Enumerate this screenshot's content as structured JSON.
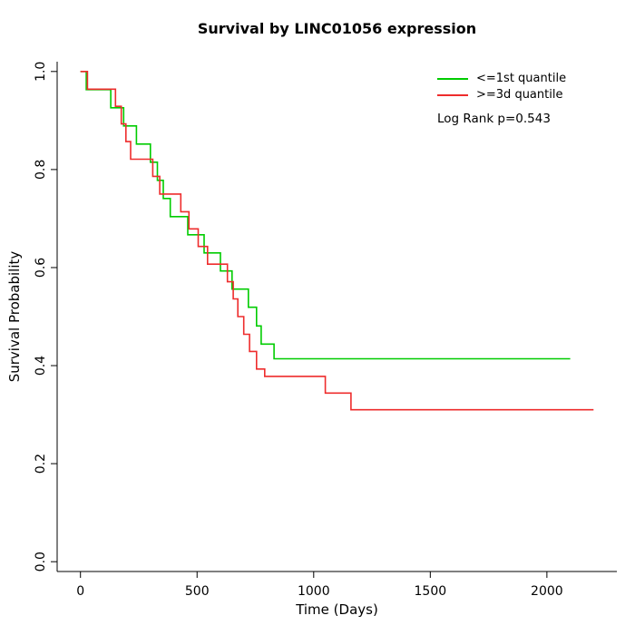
{
  "title": "Survival by LINC01056 expression",
  "x_axis": {
    "label": "Time (Days)",
    "ticks": [
      0,
      500,
      1000,
      1500,
      2000
    ],
    "min": -100,
    "max": 2300
  },
  "y_axis": {
    "label": "Survival Probability",
    "ticks": [
      0.0,
      0.2,
      0.4,
      0.6,
      0.8,
      1.0
    ],
    "min": -0.02,
    "max": 1.02
  },
  "legend": {
    "items": [
      {
        "label": "<=1st quantile",
        "color": "#00CC00"
      },
      {
        "label": ">=3d quantile",
        "color": "#EE2C2C"
      }
    ],
    "note": "Log Rank p=0.543"
  },
  "chart_data": {
    "type": "line",
    "subtype": "kaplan-meier-step",
    "title": "Survival by LINC01056 expression",
    "xlabel": "Time (Days)",
    "ylabel": "Survival Probability",
    "xlim": [
      0,
      2200
    ],
    "ylim": [
      0.0,
      1.0
    ],
    "x_ticks": [
      0,
      500,
      1000,
      1500,
      2000
    ],
    "y_ticks": [
      0.0,
      0.2,
      0.4,
      0.6,
      0.8,
      1.0
    ],
    "grid": false,
    "legend_position": "top-right",
    "annotations": [
      "Log Rank p=0.543"
    ],
    "series": [
      {
        "name": "<=1st quantile",
        "color": "#00CC00",
        "points": [
          [
            0,
            1.0
          ],
          [
            25,
            0.963
          ],
          [
            130,
            0.926
          ],
          [
            185,
            0.889
          ],
          [
            240,
            0.852
          ],
          [
            300,
            0.815
          ],
          [
            330,
            0.778
          ],
          [
            355,
            0.741
          ],
          [
            385,
            0.704
          ],
          [
            460,
            0.667
          ],
          [
            530,
            0.63
          ],
          [
            600,
            0.593
          ],
          [
            650,
            0.556
          ],
          [
            720,
            0.519
          ],
          [
            755,
            0.481
          ],
          [
            775,
            0.444
          ],
          [
            830,
            0.414
          ],
          [
            2100,
            0.414
          ]
        ]
      },
      {
        "name": ">=3d quantile",
        "color": "#EE2C2C",
        "points": [
          [
            0,
            1.0
          ],
          [
            30,
            0.964
          ],
          [
            150,
            0.929
          ],
          [
            175,
            0.893
          ],
          [
            195,
            0.857
          ],
          [
            215,
            0.821
          ],
          [
            310,
            0.786
          ],
          [
            340,
            0.75
          ],
          [
            430,
            0.714
          ],
          [
            465,
            0.679
          ],
          [
            505,
            0.643
          ],
          [
            545,
            0.607
          ],
          [
            630,
            0.571
          ],
          [
            655,
            0.536
          ],
          [
            675,
            0.5
          ],
          [
            700,
            0.464
          ],
          [
            725,
            0.429
          ],
          [
            755,
            0.393
          ],
          [
            790,
            0.378
          ],
          [
            1050,
            0.344
          ],
          [
            1160,
            0.31
          ],
          [
            2200,
            0.31
          ]
        ]
      }
    ]
  }
}
